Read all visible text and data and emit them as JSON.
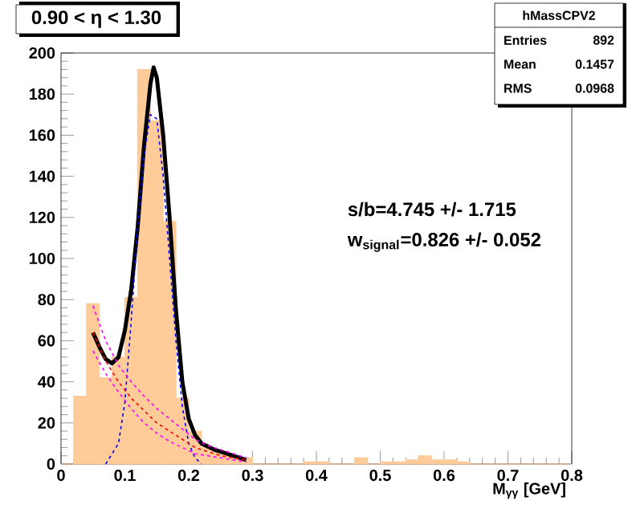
{
  "chart_data": {
    "type": "histogram",
    "title": "0.90 < η < 1.30",
    "xlabel": "M$_{γγ}$ [GeV]",
    "bins": [
      0,
      0.02,
      0.04,
      0.06,
      0.08,
      0.1,
      0.12,
      0.14,
      0.16,
      0.18,
      0.2,
      0.22,
      0.24,
      0.26,
      0.28,
      0.3,
      0.32,
      0.34,
      0.36,
      0.38,
      0.4,
      0.42,
      0.44,
      0.46,
      0.48,
      0.5,
      0.52,
      0.54,
      0.56,
      0.58,
      0.6,
      0.62,
      0.64,
      0.66,
      0.68,
      0.7,
      0.72,
      0.74,
      0.76,
      0.78,
      0.8
    ],
    "values": [
      0,
      33,
      78,
      42,
      52,
      81,
      192,
      167,
      118,
      32,
      16,
      8,
      6,
      4,
      3,
      0,
      0,
      0,
      0,
      1,
      1,
      0,
      0,
      3,
      0,
      1,
      1,
      2,
      4,
      2,
      2,
      1,
      0,
      0,
      0,
      0,
      0,
      0,
      0,
      0
    ],
    "color": "#ffcc99",
    "series": [
      {
        "type": "line",
        "color": "#000000",
        "line_style": "solid",
        "x": [
          0.05,
          0.06,
          0.07,
          0.08,
          0.09,
          0.1,
          0.11,
          0.12,
          0.13,
          0.14,
          0.145,
          0.15,
          0.16,
          0.17,
          0.18,
          0.19,
          0.2,
          0.21,
          0.22,
          0.24,
          0.26,
          0.28,
          0.29
        ],
        "values": [
          64,
          57,
          51,
          49,
          52,
          65,
          85,
          115,
          155,
          185,
          193,
          188,
          160,
          120,
          75,
          40,
          22,
          14,
          10,
          7,
          5,
          3,
          2
        ]
      },
      {
        "type": "line",
        "color": "#0000ff",
        "line_style": "dashed",
        "x": [
          0.07,
          0.09,
          0.1,
          0.11,
          0.12,
          0.13,
          0.14,
          0.15,
          0.16,
          0.17,
          0.18,
          0.19,
          0.2,
          0.21,
          0.22
        ],
        "values": [
          0,
          10,
          30,
          70,
          115,
          150,
          170,
          168,
          140,
          100,
          60,
          28,
          10,
          3,
          0
        ]
      },
      {
        "type": "line",
        "color": "#ff0000",
        "line_style": "dashed",
        "x": [
          0.05,
          0.07,
          0.09,
          0.11,
          0.13,
          0.15,
          0.17,
          0.19,
          0.21,
          0.23,
          0.25,
          0.27,
          0.29
        ],
        "values": [
          64,
          50,
          40,
          32,
          26,
          20,
          16,
          12,
          8,
          6,
          4,
          3,
          2
        ]
      },
      {
        "type": "line",
        "color": "#ff00ff",
        "line_style": "dashed",
        "x": [
          0.05,
          0.07,
          0.09,
          0.11,
          0.13,
          0.15,
          0.17,
          0.19,
          0.21,
          0.23,
          0.25,
          0.27,
          0.29
        ],
        "values": [
          77,
          60,
          48,
          40,
          33,
          27,
          22,
          17,
          12,
          9,
          7,
          5,
          3
        ]
      },
      {
        "type": "line",
        "color": "#ff00ff",
        "line_style": "dashed",
        "x": [
          0.05,
          0.07,
          0.09,
          0.11,
          0.13,
          0.15,
          0.17,
          0.19,
          0.21,
          0.23,
          0.25,
          0.27,
          0.29
        ],
        "values": [
          55,
          44,
          35,
          27,
          20,
          15,
          11,
          8,
          5,
          4,
          3,
          2,
          1
        ]
      }
    ],
    "xlim": [
      0,
      0.8
    ],
    "ylim": [
      0,
      200
    ],
    "xticks": [
      0,
      0.1,
      0.2,
      0.3,
      0.4,
      0.5,
      0.6,
      0.7,
      0.8
    ],
    "yticks": [
      0,
      20,
      40,
      60,
      80,
      100,
      120,
      140,
      160,
      180,
      200
    ],
    "annotations": [
      "hMassCPV2",
      "Entries",
      "892",
      "Mean",
      "0.1457",
      "RMS",
      "0.0968",
      "s/b=4.745 +/- 1.715",
      "w$_{signal}$=0.826 +/- 0.052"
    ]
  }
}
